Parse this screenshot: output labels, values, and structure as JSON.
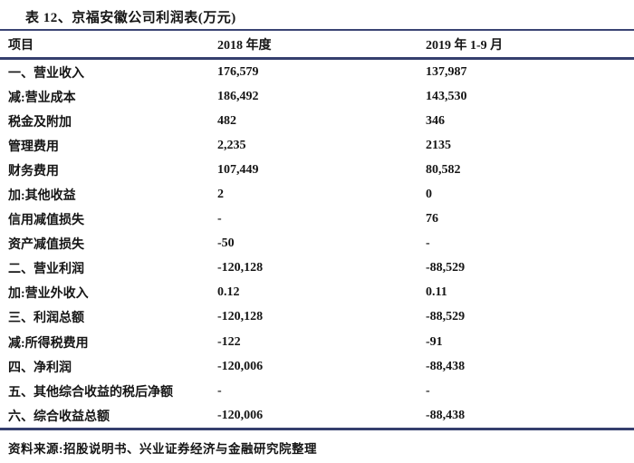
{
  "title": "表 12、京福安徽公司利润表(万元)",
  "table": {
    "columns": [
      "项目",
      "2018 年度",
      "2019 年 1-9 月"
    ],
    "rows": [
      [
        "一、营业收入",
        "176,579",
        "137,987"
      ],
      [
        "减:营业成本",
        "186,492",
        "143,530"
      ],
      [
        "税金及附加",
        "482",
        "346"
      ],
      [
        "管理费用",
        "2,235",
        "2135"
      ],
      [
        "财务费用",
        "107,449",
        "80,582"
      ],
      [
        "加:其他收益",
        "2",
        "0"
      ],
      [
        "信用减值损失",
        "-",
        "76"
      ],
      [
        "资产减值损失",
        "-50",
        "-"
      ],
      [
        "二、营业利润",
        "-120,128",
        "-88,529"
      ],
      [
        "加:营业外收入",
        "0.12",
        "0.11"
      ],
      [
        "三、利润总额",
        "-120,128",
        "-88,529"
      ],
      [
        "减:所得税费用",
        "-122",
        "-91"
      ],
      [
        "四、净利润",
        "-120,006",
        "-88,438"
      ],
      [
        "五、其他综合收益的税后净额",
        "-",
        "-"
      ],
      [
        "六、综合收益总额",
        "-120,006",
        "-88,438"
      ]
    ]
  },
  "footer": "资料来源:招股说明书、兴业证券经济与金融研究院整理",
  "colors": {
    "rule": "#353f6e",
    "text": "#151515",
    "background": "#ffffff"
  }
}
